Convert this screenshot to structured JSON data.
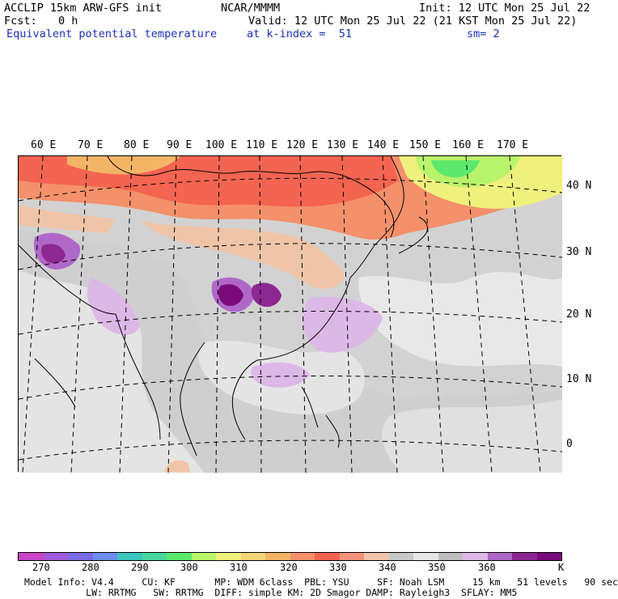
{
  "header": {
    "model": "ACCLIP 15km ARW-GFS init",
    "center": "NCAR/MMMM",
    "init": "Init: 12 UTC Mon 25 Jul 22",
    "fcst_label": "Fcst:",
    "fcst_value": "0 h",
    "valid": "Valid: 12 UTC Mon 25 Jul 22 (21 KST Mon 25 Jul 22)",
    "field": "Equivalent potential temperature",
    "level": "at k-index =  51",
    "smooth": "sm= 2"
  },
  "map": {
    "lon_labels": [
      "60 E",
      "70 E",
      "80 E",
      "90 E",
      "100 E",
      "110 E",
      "120 E",
      "130 E",
      "140 E",
      "150 E",
      "160 E",
      "170 E"
    ],
    "lat_labels": [
      "40 N",
      "30 N",
      "20 N",
      "10 N",
      "0"
    ]
  },
  "colorbar": {
    "colors": [
      "#c844c8",
      "#a05ad8",
      "#7a6ae6",
      "#6c8ef0",
      "#3cc8c0",
      "#4ad8a0",
      "#5ce86c",
      "#b8f46a",
      "#f0f07c",
      "#f4d478",
      "#f4b466",
      "#f4906a",
      "#f46450",
      "#f49278",
      "#f0c4a8",
      "#c8c8c8",
      "#e6e6e6",
      "#bebebe",
      "#dcb8e6",
      "#b068c8",
      "#8c2890",
      "#7a0a7a"
    ],
    "ticks": [
      "270",
      "280",
      "290",
      "300",
      "310",
      "320",
      "330",
      "340",
      "350",
      "360",
      "K"
    ],
    "unit": "K"
  },
  "footer": {
    "line1": "Model Info: V4.4     CU: KF       MP: WDM 6class  PBL: YSU     SF: Noah LSM     15 km   51 levels   90 sec",
    "line2": "           LW: RRTMG   SW: RRTMG  DIFF: simple KM: 2D Smagor DAMP: Rayleigh3  SFLAY: MM5"
  }
}
